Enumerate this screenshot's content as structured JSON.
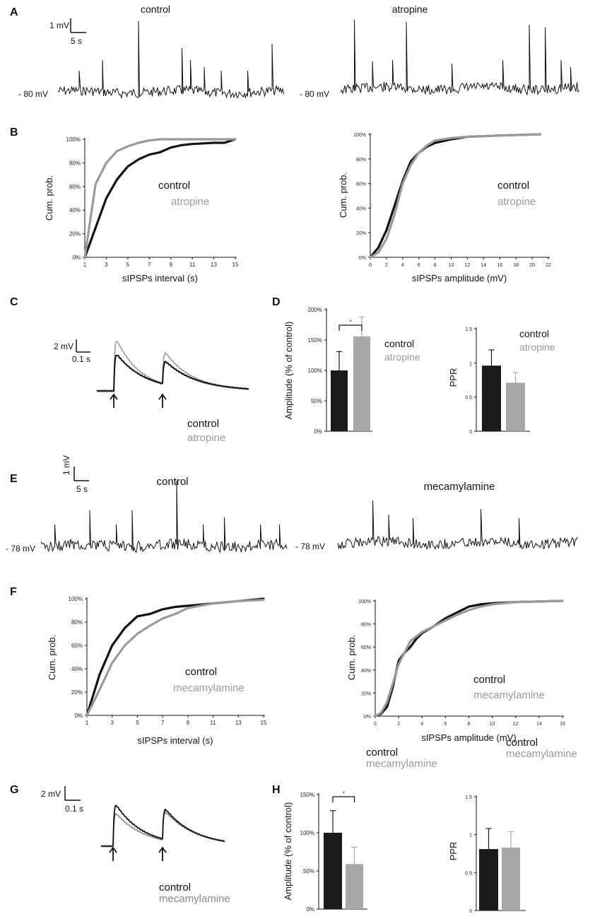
{
  "colors": {
    "control": "#111111",
    "treatment": "#9a9a9a",
    "bar_control": "#1a1a1a",
    "bar_treatment": "#a8a8a8"
  },
  "panels": {
    "A": {
      "letter": "A",
      "left_title": "control",
      "right_title": "atropine",
      "vm_left": "- 80 mV",
      "vm_right": "- 80 mV",
      "scale_v": "1 mV",
      "scale_t": "5 s"
    },
    "B": {
      "letter": "B"
    },
    "C": {
      "letter": "C",
      "scale_v": "2 mV",
      "scale_t": "0.1 s",
      "legend_control": "control",
      "legend_treatment": "atropine"
    },
    "D": {
      "letter": "D"
    },
    "E": {
      "letter": "E",
      "left_title": "control",
      "right_title": "mecamylamine",
      "vm_left": "- 78 mV",
      "vm_right": "- 78 mV",
      "scale_v": "1 mV",
      "scale_t": "5 s"
    },
    "F": {
      "letter": "F"
    },
    "G": {
      "letter": "G",
      "scale_v": "2 mV",
      "scale_t": "0.1 s",
      "legend_control": "control",
      "legend_treatment": "mecamylamine"
    },
    "H": {
      "letter": "H"
    }
  },
  "chart_data": [
    {
      "id": "B-interval",
      "type": "line",
      "xlabel": "sIPSPs interval (s)",
      "ylabel": "Cum.  prob.",
      "xlim": [
        1,
        15
      ],
      "ylim": [
        0,
        100
      ],
      "x_ticks": [
        "1",
        "3",
        "5",
        "7",
        "9",
        "11",
        "13",
        "15"
      ],
      "y_ticks": [
        "0%",
        "20%",
        "40%",
        "60%",
        "80%",
        "100%"
      ],
      "legend": [
        "control",
        "atropine"
      ],
      "series": [
        {
          "name": "control",
          "x": [
            1,
            2,
            3,
            4,
            5,
            6,
            7,
            8,
            9,
            10,
            11,
            13,
            14,
            15
          ],
          "y": [
            0,
            25,
            50,
            66,
            77,
            83,
            87,
            89,
            93,
            95,
            96,
            97,
            97,
            100
          ]
        },
        {
          "name": "atropine",
          "x": [
            1,
            2,
            3,
            4,
            5,
            6,
            7,
            8,
            10,
            15
          ],
          "y": [
            0,
            62,
            80,
            90,
            94,
            97,
            99,
            100,
            100,
            100
          ]
        }
      ]
    },
    {
      "id": "B-amplitude",
      "type": "line",
      "xlabel": "sIPSPs amplitude (mV)",
      "ylabel": "Cum.  prob.",
      "xlim": [
        0,
        22
      ],
      "ylim": [
        0,
        100
      ],
      "x_ticks": [
        "0",
        "2",
        "4",
        "6",
        "8",
        "10",
        "12",
        "14",
        "16",
        "18",
        "20",
        "22"
      ],
      "y_ticks": [
        "0%",
        "20%",
        "40%",
        "60%",
        "80%",
        "100%"
      ],
      "legend": [
        "control",
        "atropine"
      ],
      "series": [
        {
          "name": "control",
          "x": [
            0,
            1,
            2,
            3,
            4,
            5,
            6,
            7,
            8,
            10,
            12,
            16,
            21
          ],
          "y": [
            0,
            8,
            22,
            42,
            62,
            78,
            85,
            90,
            93,
            96,
            98,
            99,
            100
          ]
        },
        {
          "name": "atropine",
          "x": [
            0,
            1,
            2,
            3,
            4,
            5,
            6,
            7,
            8,
            10,
            12,
            16,
            21
          ],
          "y": [
            0,
            4,
            15,
            35,
            60,
            75,
            85,
            91,
            95,
            97,
            98,
            99,
            100
          ]
        }
      ]
    },
    {
      "id": "D-amplitude",
      "type": "bar",
      "ylabel": "Amplitude (% of control)",
      "ylim": [
        0,
        200
      ],
      "y_ticks": [
        "0%",
        "50%",
        "100%",
        "150%",
        "200%"
      ],
      "categories": [
        "control",
        "atropine"
      ],
      "values": [
        100,
        156
      ],
      "errors": [
        31,
        32
      ],
      "significance": "*",
      "legend": [
        "control",
        "atropine"
      ]
    },
    {
      "id": "D-ppr",
      "type": "bar",
      "ylabel": "PPR",
      "ylim": [
        0,
        1.5
      ],
      "y_ticks": [
        "0",
        "0.5",
        "1",
        "1.5"
      ],
      "categories": [
        "control",
        "atropine"
      ],
      "values": [
        0.96,
        0.71
      ],
      "errors": [
        0.23,
        0.15
      ],
      "legend": [
        "control",
        "atropine"
      ]
    },
    {
      "id": "F-interval",
      "type": "line",
      "xlabel": "sIPSPs interval (s)",
      "ylabel": "Cum.  prob.",
      "xlim": [
        1,
        15
      ],
      "ylim": [
        0,
        100
      ],
      "x_ticks": [
        "1",
        "3",
        "5",
        "7",
        "9",
        "11",
        "13",
        "15"
      ],
      "y_ticks": [
        "0%",
        "20%",
        "40%",
        "60%",
        "80%",
        "100%"
      ],
      "legend": [
        "control",
        "mecamylamine"
      ],
      "series": [
        {
          "name": "control",
          "x": [
            1,
            2,
            3,
            4,
            5,
            6,
            7,
            8,
            9,
            10,
            11,
            13,
            15
          ],
          "y": [
            0,
            35,
            60,
            75,
            85,
            87,
            91,
            93,
            94,
            95,
            96,
            98,
            100
          ]
        },
        {
          "name": "mecamylamine",
          "x": [
            1,
            2,
            3,
            4,
            5,
            6,
            7,
            8,
            9,
            10,
            11,
            13,
            15
          ],
          "y": [
            0,
            22,
            45,
            60,
            70,
            77,
            83,
            87,
            92,
            94,
            96,
            98,
            99
          ]
        }
      ]
    },
    {
      "id": "F-amplitude",
      "type": "line",
      "xlabel": "sIPSPs amplitude (mV)",
      "ylabel": "Cum.  prob.",
      "xlim": [
        0,
        16
      ],
      "ylim": [
        0,
        100
      ],
      "x_ticks": [
        "0",
        "2",
        "4",
        "6",
        "8",
        "10",
        "12",
        "14",
        "16"
      ],
      "y_ticks": [
        "0%",
        "20%",
        "40%",
        "60%",
        "80%",
        "100%"
      ],
      "legend": [
        "control",
        "mecamylamine"
      ],
      "series": [
        {
          "name": "control",
          "x": [
            0,
            0.5,
            1,
            1.5,
            2,
            2.5,
            3,
            3.5,
            4,
            5,
            6,
            7,
            8,
            9,
            10,
            12,
            16
          ],
          "y": [
            0,
            2,
            8,
            25,
            48,
            55,
            60,
            67,
            72,
            78,
            85,
            90,
            95,
            97,
            98,
            99,
            100
          ]
        },
        {
          "name": "mecamylamine",
          "x": [
            0,
            0.5,
            1,
            1.5,
            2,
            3,
            4,
            5,
            6,
            7,
            8,
            9,
            10,
            12,
            16
          ],
          "y": [
            0,
            3,
            12,
            28,
            45,
            65,
            73,
            78,
            83,
            88,
            92,
            95,
            97,
            99,
            100
          ]
        }
      ]
    },
    {
      "id": "H-amplitude",
      "type": "bar",
      "ylabel": "Amplitude (% of control)",
      "ylim": [
        0,
        150
      ],
      "y_ticks": [
        "0%",
        "50%",
        "100%",
        "150%"
      ],
      "categories": [
        "control",
        "mecamylamine"
      ],
      "values": [
        100,
        59
      ],
      "errors": [
        29,
        22
      ],
      "significance": "*",
      "legend": [
        "control",
        "mecamylamine"
      ]
    },
    {
      "id": "H-ppr",
      "type": "bar",
      "ylabel": "PPR",
      "ylim": [
        0,
        1.5
      ],
      "y_ticks": [
        "0",
        "0.5",
        "1",
        "1.5"
      ],
      "categories": [
        "control",
        "mecamylamine"
      ],
      "values": [
        0.81,
        0.83
      ],
      "errors": [
        0.27,
        0.21
      ],
      "legend": [
        "control",
        "mecamylamine"
      ]
    }
  ]
}
